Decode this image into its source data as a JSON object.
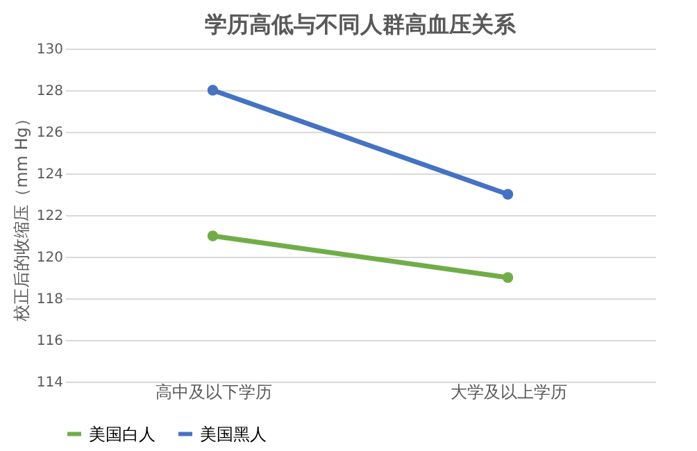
{
  "chart_data": {
    "type": "line",
    "title": "学历高低与不同人群高血压关系",
    "ylabel": "校正后的收缩压（mm Hg）",
    "categories": [
      "高中及以下学历",
      "大学及以上学历"
    ],
    "series": [
      {
        "name": "美国白人",
        "color": "#70ad47",
        "values": [
          121,
          119
        ]
      },
      {
        "name": "美国黑人",
        "color": "#4472c4",
        "values": [
          128,
          123
        ]
      }
    ],
    "ylim": [
      114,
      130
    ],
    "yticks": [
      114,
      116,
      118,
      120,
      122,
      124,
      126,
      128,
      130
    ],
    "grid": "y",
    "legend": "bottom",
    "marker": "circle",
    "line_style": "solid"
  }
}
